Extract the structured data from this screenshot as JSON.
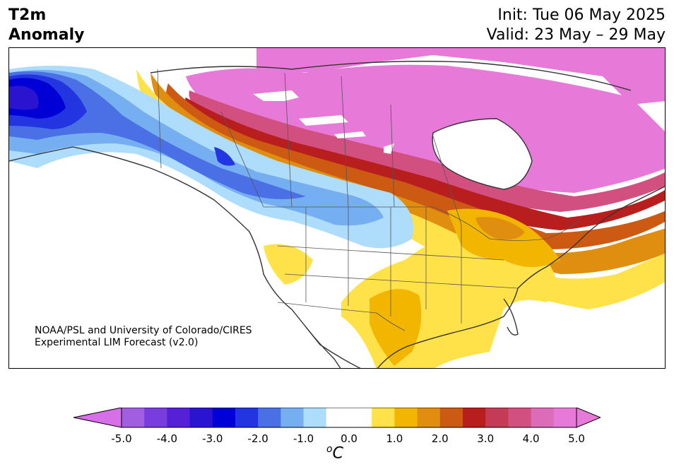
{
  "title": {
    "line1": "T2m",
    "line2": "Anomaly"
  },
  "init": "Init: Tue 06 May 2025",
  "valid": "Valid: 23 May – 29 May",
  "credit": {
    "line1": "NOAA/PSL and University of Colorado/CIRES",
    "line2": "Experimental LIM Forecast (v2.0)"
  },
  "colorbar": {
    "unit_sup": "o",
    "unit": "C",
    "range": [
      -5.0,
      5.0
    ],
    "step": 0.5,
    "ticks": [
      "-5.0",
      "-4.0",
      "-3.0",
      "-2.0",
      "-1.0",
      "0.0",
      "1.0",
      "2.0",
      "3.0",
      "4.0",
      "5.0"
    ],
    "colors": [
      "#a25ee0",
      "#7a3ddd",
      "#5520d6",
      "#2a14cf",
      "#0000d6",
      "#2235e0",
      "#4b70e6",
      "#76aef2",
      "#aedcfb",
      "#ffffff",
      "#ffffff",
      "#ffe24a",
      "#f2b600",
      "#e08e10",
      "#cd5a12",
      "#b81e1e",
      "#c53a55",
      "#d15080",
      "#dc6bb8",
      "#e77ad8"
    ],
    "extend_low": "#d76fe9",
    "extend_high": "#e77ad8"
  },
  "map": {
    "region": "North America",
    "field": "2m temperature anomaly"
  }
}
